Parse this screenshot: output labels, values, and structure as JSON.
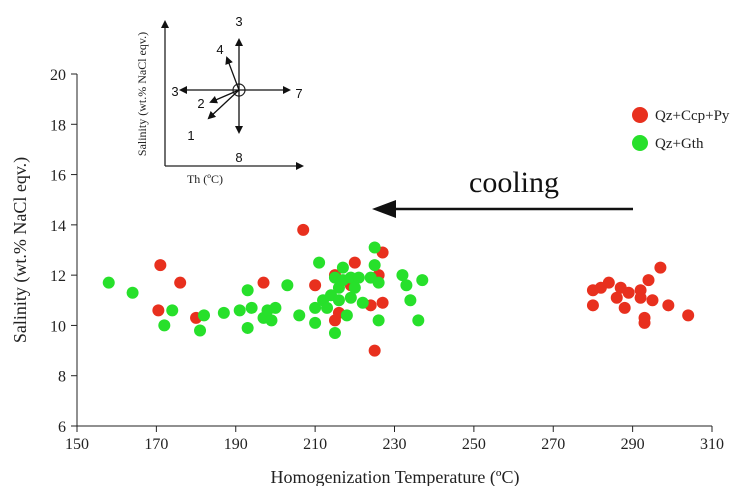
{
  "chart_data": {
    "type": "scatter",
    "title": "",
    "xlabel": "Homogenization Temperature (ºC)",
    "ylabel": "Salinity (wt.% NaCl eqv.)",
    "xlim": [
      150,
      310
    ],
    "ylim": [
      6,
      20
    ],
    "xticks": [
      "150",
      "170",
      "190",
      "210",
      "230",
      "250",
      "270",
      "290",
      "310"
    ],
    "yticks": [
      "6",
      "8",
      "10",
      "12",
      "14",
      "16",
      "18",
      "20"
    ],
    "grid": false,
    "legend_position": "top-right",
    "annotation": "cooling",
    "series": [
      {
        "name": "Qz+Ccp+Py",
        "color": "#e8301e",
        "points": [
          [
            171,
            12.4
          ],
          [
            170.5,
            10.6
          ],
          [
            176,
            11.7
          ],
          [
            180,
            10.3
          ],
          [
            197,
            11.7
          ],
          [
            207,
            13.8
          ],
          [
            210,
            11.6
          ],
          [
            215,
            10.2
          ],
          [
            215,
            12.0
          ],
          [
            216,
            10.5
          ],
          [
            219,
            11.6
          ],
          [
            220,
            12.5
          ],
          [
            224,
            10.8
          ],
          [
            225,
            9.0
          ],
          [
            226,
            12.0
          ],
          [
            227,
            12.9
          ],
          [
            227,
            10.9
          ],
          [
            280,
            11.4
          ],
          [
            280,
            10.8
          ],
          [
            282,
            11.5
          ],
          [
            284,
            11.7
          ],
          [
            286,
            11.1
          ],
          [
            287,
            11.5
          ],
          [
            288,
            10.7
          ],
          [
            289,
            11.3
          ],
          [
            292,
            11.4
          ],
          [
            292,
            11.1
          ],
          [
            293,
            10.1
          ],
          [
            293,
            10.3
          ],
          [
            294,
            11.8
          ],
          [
            295,
            11.0
          ],
          [
            297,
            12.3
          ],
          [
            299,
            10.8
          ],
          [
            304,
            10.4
          ]
        ]
      },
      {
        "name": "Qz+Gth",
        "color": "#27e02b",
        "points": [
          [
            158,
            11.7
          ],
          [
            164,
            11.3
          ],
          [
            172,
            10.0
          ],
          [
            174,
            10.6
          ],
          [
            181,
            9.8
          ],
          [
            182,
            10.4
          ],
          [
            187,
            10.5
          ],
          [
            191,
            10.6
          ],
          [
            193,
            11.4
          ],
          [
            193,
            9.9
          ],
          [
            194,
            10.7
          ],
          [
            197,
            10.3
          ],
          [
            198,
            10.6
          ],
          [
            199,
            10.2
          ],
          [
            200,
            10.7
          ],
          [
            203,
            11.6
          ],
          [
            206,
            10.4
          ],
          [
            210,
            10.1
          ],
          [
            210,
            10.7
          ],
          [
            211,
            12.5
          ],
          [
            212,
            11.0
          ],
          [
            213,
            10.7
          ],
          [
            214,
            11.2
          ],
          [
            215,
            9.7
          ],
          [
            215,
            11.9
          ],
          [
            216,
            11.5
          ],
          [
            216,
            11.0
          ],
          [
            217,
            12.3
          ],
          [
            217,
            11.8
          ],
          [
            218,
            10.4
          ],
          [
            219,
            11.9
          ],
          [
            219,
            11.1
          ],
          [
            220,
            11.5
          ],
          [
            221,
            11.9
          ],
          [
            222,
            10.9
          ],
          [
            224,
            11.9
          ],
          [
            225,
            12.4
          ],
          [
            225,
            13.1
          ],
          [
            226,
            10.2
          ],
          [
            226,
            11.7
          ],
          [
            232,
            12.0
          ],
          [
            233,
            11.6
          ],
          [
            234,
            11.0
          ],
          [
            236,
            10.2
          ],
          [
            237,
            11.8
          ]
        ]
      }
    ]
  },
  "inset": {
    "ylabel": "Salinity (wt.% NaCl eqv.)",
    "xlabel": "Th (ºC)",
    "arrows": [
      {
        "label": "1",
        "dx": -30,
        "dy": -28
      },
      {
        "label": "2",
        "dx": -28,
        "dy": -12
      },
      {
        "label": "3",
        "dx": -58,
        "dy": 0
      },
      {
        "label": "3",
        "dx": 0,
        "dy": 50
      },
      {
        "label": "4",
        "dx": -12,
        "dy": 32
      },
      {
        "label": "7",
        "dx": 50,
        "dy": 0
      },
      {
        "label": "8",
        "dx": 0,
        "dy": -42
      }
    ]
  }
}
